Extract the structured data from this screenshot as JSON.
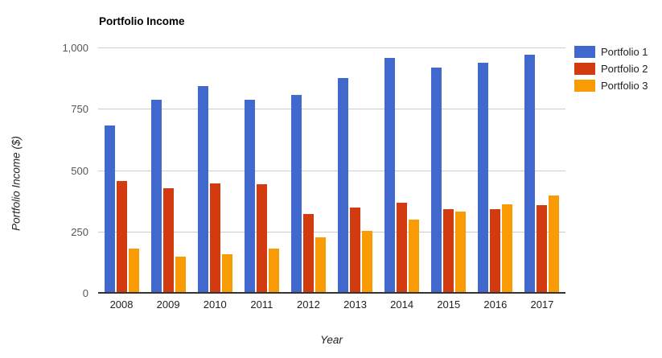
{
  "chart_data": {
    "type": "bar",
    "title": "Portfolio Income",
    "xlabel": "Year",
    "ylabel": "Portfolio Income ($)",
    "categories": [
      "2008",
      "2009",
      "2010",
      "2011",
      "2012",
      "2013",
      "2014",
      "2015",
      "2016",
      "2017"
    ],
    "series": [
      {
        "name": "Portfolio 1",
        "color": "#4169cd",
        "values": [
          685,
          790,
          845,
          790,
          810,
          880,
          960,
          920,
          940,
          975
        ]
      },
      {
        "name": "Portfolio 2",
        "color": "#d23b10",
        "values": [
          460,
          430,
          450,
          445,
          325,
          350,
          370,
          345,
          345,
          360
        ]
      },
      {
        "name": "Portfolio 3",
        "color": "#f89b05",
        "values": [
          185,
          150,
          160,
          185,
          230,
          255,
          300,
          335,
          365,
          400
        ]
      }
    ],
    "ylim": [
      0,
      1000
    ],
    "yticks": [
      0,
      250,
      500,
      750,
      1000
    ],
    "ytick_labels": [
      "0",
      "250",
      "500",
      "750",
      "1,000"
    ],
    "grid": true,
    "legend_position": "right"
  },
  "style": {
    "background": "#ffffff",
    "gridline_color": "#cccccc",
    "axis_line_color": "#333333",
    "title_color": "#000000",
    "axis_title_color": "#222222",
    "x_tick_color": "#222222",
    "y_tick_color": "#555555",
    "legend_text_color": "#222222"
  }
}
